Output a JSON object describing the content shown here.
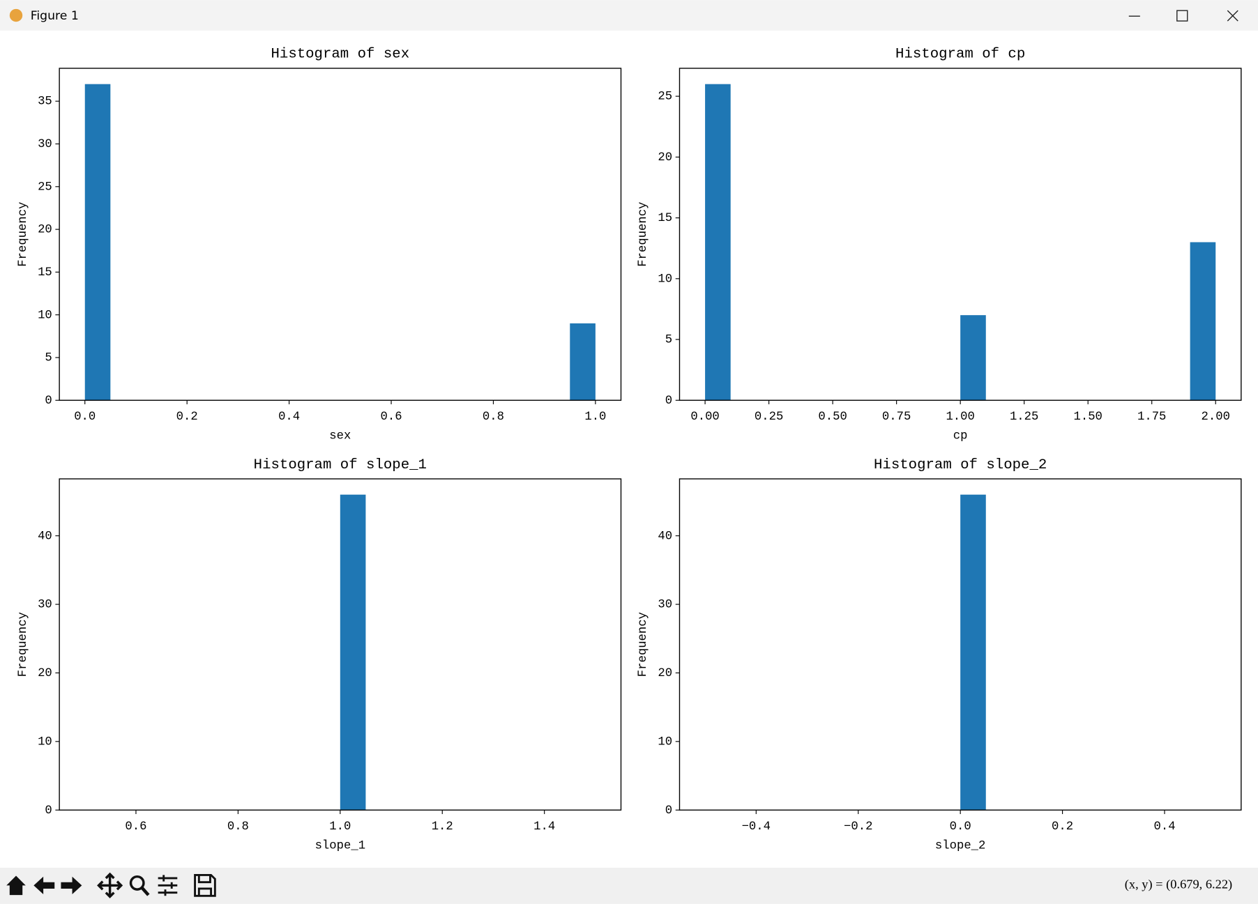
{
  "window": {
    "title": "Figure 1",
    "status": "(x, y) = (0.679, 6.22)"
  },
  "chart_data": [
    {
      "type": "histogram",
      "title": "Histogram of sex",
      "xlabel": "sex",
      "ylabel": "Frequency",
      "color": "#1f77b4",
      "bins": [
        0,
        0.05,
        0.1,
        0.15,
        0.2,
        0.25,
        0.3,
        0.35,
        0.4,
        0.45,
        0.5,
        0.55,
        0.6,
        0.65,
        0.7,
        0.75,
        0.8,
        0.85,
        0.9,
        0.95,
        1
      ],
      "counts": [
        37,
        0,
        0,
        0,
        0,
        0,
        0,
        0,
        0,
        0,
        0,
        0,
        0,
        0,
        0,
        0,
        0,
        0,
        0,
        9
      ],
      "xlim": [
        -0.05,
        1.05
      ],
      "ylim": [
        0,
        38.85
      ],
      "xticks": [
        {
          "value": 0,
          "label": "0.0"
        },
        0.2,
        0.4,
        0.6,
        0.8,
        {
          "value": 1,
          "label": "1.0"
        }
      ],
      "yticks": [
        0,
        5,
        10,
        15,
        20,
        25,
        30,
        35
      ]
    },
    {
      "type": "histogram",
      "title": "Histogram of cp",
      "xlabel": "cp",
      "ylabel": "Frequency",
      "color": "#1f77b4",
      "bins": [
        0,
        0.1,
        0.2,
        0.3,
        0.4,
        0.5,
        0.6,
        0.7,
        0.8,
        0.9,
        1,
        1.1,
        1.2,
        1.3,
        1.4,
        1.5,
        1.6,
        1.7,
        1.8,
        1.9,
        2
      ],
      "counts": [
        26,
        0,
        0,
        0,
        0,
        0,
        0,
        0,
        0,
        0,
        7,
        0,
        0,
        0,
        0,
        0,
        0,
        0,
        0,
        13
      ],
      "xlim": [
        -0.1,
        2.1
      ],
      "ylim": [
        0,
        27.3
      ],
      "xticks": [
        {
          "value": 0,
          "label": "0.00"
        },
        {
          "value": 0.25,
          "label": "0.25"
        },
        {
          "value": 0.5,
          "label": "0.50"
        },
        {
          "value": 0.75,
          "label": "0.75"
        },
        {
          "value": 1,
          "label": "1.00"
        },
        {
          "value": 1.25,
          "label": "1.25"
        },
        {
          "value": 1.5,
          "label": "1.50"
        },
        {
          "value": 1.75,
          "label": "1.75"
        },
        {
          "value": 2,
          "label": "2.00"
        }
      ],
      "yticks": [
        0,
        5,
        10,
        15,
        20,
        25
      ]
    },
    {
      "type": "histogram",
      "title": "Histogram of slope_1",
      "xlabel": "slope_1",
      "ylabel": "Frequency",
      "color": "#1f77b4",
      "bins": [
        0.5,
        0.55,
        0.6,
        0.65,
        0.7,
        0.75,
        0.8,
        0.85,
        0.9,
        0.95,
        1,
        1.05,
        1.1,
        1.15,
        1.2,
        1.25,
        1.3,
        1.35,
        1.4,
        1.45,
        1.5
      ],
      "counts": [
        0,
        0,
        0,
        0,
        0,
        0,
        0,
        0,
        0,
        0,
        46,
        0,
        0,
        0,
        0,
        0,
        0,
        0,
        0,
        0
      ],
      "xlim": [
        0.45,
        1.55
      ],
      "ylim": [
        0,
        48.3
      ],
      "xticks": [
        0.6,
        0.8,
        {
          "value": 1,
          "label": "1.0"
        },
        1.2,
        1.4
      ],
      "yticks": [
        0,
        10,
        20,
        30,
        40
      ]
    },
    {
      "type": "histogram",
      "title": "Histogram of slope_2",
      "xlabel": "slope_2",
      "ylabel": "Frequency",
      "color": "#1f77b4",
      "bins": [
        -0.5,
        -0.45,
        -0.4,
        -0.35,
        -0.3,
        -0.25,
        -0.2,
        -0.15,
        -0.1,
        -0.05,
        0,
        0.05,
        0.1,
        0.15,
        0.2,
        0.25,
        0.3,
        0.35,
        0.4,
        0.45,
        0.5
      ],
      "counts": [
        0,
        0,
        0,
        0,
        0,
        0,
        0,
        0,
        0,
        0,
        46,
        0,
        0,
        0,
        0,
        0,
        0,
        0,
        0,
        0
      ],
      "xlim": [
        -0.55,
        0.55
      ],
      "ylim": [
        0,
        48.3
      ],
      "xticks": [
        {
          "value": -0.4,
          "label": "−0.4"
        },
        {
          "value": -0.2,
          "label": "−0.2"
        },
        {
          "value": 0,
          "label": "0.0"
        },
        0.2,
        0.4
      ],
      "yticks": [
        0,
        10,
        20,
        30,
        40
      ]
    }
  ]
}
